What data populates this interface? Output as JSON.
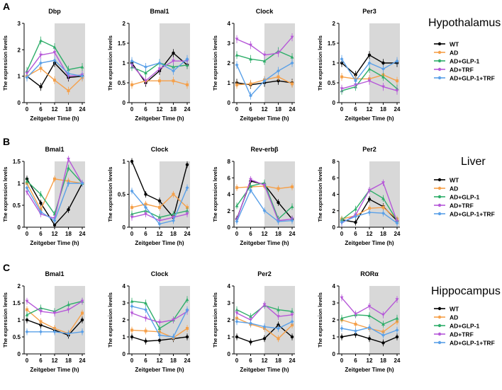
{
  "series_names": [
    "WT",
    "AD",
    "AD+GLP-1",
    "AD+TRF",
    "AD+GLP-1+TRF"
  ],
  "colors": {
    "WT": "#000000",
    "AD": "#f5a04a",
    "AD+GLP-1": "#2fae6a",
    "AD+TRF": "#b658d8",
    "AD+GLP-1+TRF": "#5aa0e8",
    "night": "#d8d8d8"
  },
  "xlabel": "Zeitgeber Time (h)",
  "ylabel": "The expression levels",
  "x_ticks": [
    0,
    6,
    12,
    18,
    24
  ],
  "panels": [
    {
      "letter": "A",
      "tissue": "Hypothalamus"
    },
    {
      "letter": "B",
      "tissue": "Liver"
    },
    {
      "letter": "C",
      "tissue": "Hippocampus"
    }
  ],
  "chart_data": [
    {
      "type": "line",
      "row": 0,
      "col": 0,
      "title": "Dbp",
      "x": [
        0,
        6,
        12,
        18,
        24
      ],
      "ylim": [
        0,
        3
      ],
      "yticks": [
        0,
        1,
        2,
        3
      ],
      "series": [
        {
          "name": "WT",
          "values": [
            1.0,
            0.6,
            1.5,
            0.95,
            1.0
          ]
        },
        {
          "name": "AD",
          "values": [
            1.0,
            1.3,
            0.85,
            0.45,
            0.95
          ]
        },
        {
          "name": "AD+GLP-1",
          "values": [
            1.2,
            2.35,
            2.1,
            1.25,
            1.35
          ]
        },
        {
          "name": "AD+TRF",
          "values": [
            1.1,
            1.8,
            1.9,
            1.0,
            1.05
          ]
        },
        {
          "name": "AD+GLP-1+TRF",
          "values": [
            0.95,
            1.5,
            1.6,
            1.1,
            1.0
          ]
        }
      ]
    },
    {
      "type": "line",
      "row": 0,
      "col": 1,
      "title": "Bmal1",
      "x": [
        0,
        6,
        12,
        18,
        24
      ],
      "ylim": [
        0,
        2.0
      ],
      "yticks": [
        0,
        0.5,
        1.0,
        1.5,
        2.0
      ],
      "series": [
        {
          "name": "WT",
          "values": [
            1.0,
            0.5,
            0.8,
            1.25,
            0.95
          ]
        },
        {
          "name": "AD",
          "values": [
            0.45,
            0.55,
            0.55,
            0.55,
            0.45
          ]
        },
        {
          "name": "AD+GLP-1",
          "values": [
            0.9,
            0.75,
            1.0,
            0.9,
            0.95
          ]
        },
        {
          "name": "AD+TRF",
          "values": [
            0.95,
            0.55,
            0.85,
            1.05,
            1.05
          ]
        },
        {
          "name": "AD+GLP-1+TRF",
          "values": [
            1.05,
            0.9,
            1.0,
            0.8,
            1.1
          ]
        }
      ]
    },
    {
      "type": "line",
      "row": 0,
      "col": 2,
      "title": "Clock",
      "x": [
        0,
        6,
        12,
        18,
        24
      ],
      "ylim": [
        0,
        4
      ],
      "yticks": [
        0,
        1,
        2,
        3,
        4
      ],
      "series": [
        {
          "name": "WT",
          "values": [
            1.0,
            0.9,
            1.0,
            1.1,
            1.0
          ]
        },
        {
          "name": "AD",
          "values": [
            0.9,
            0.95,
            1.15,
            1.3,
            0.95
          ]
        },
        {
          "name": "AD+GLP-1",
          "values": [
            2.4,
            2.2,
            2.1,
            2.6,
            2.3
          ]
        },
        {
          "name": "AD+TRF",
          "values": [
            3.2,
            2.9,
            2.4,
            2.5,
            3.3
          ]
        },
        {
          "name": "AD+GLP-1+TRF",
          "values": [
            1.9,
            0.35,
            1.1,
            1.6,
            2.0
          ]
        }
      ]
    },
    {
      "type": "line",
      "row": 0,
      "col": 3,
      "title": "Per3",
      "x": [
        0,
        6,
        12,
        18,
        24
      ],
      "ylim": [
        0,
        2.0
      ],
      "yticks": [
        0,
        0.5,
        1.0,
        1.5,
        2.0
      ],
      "series": [
        {
          "name": "WT",
          "values": [
            1.0,
            0.7,
            1.2,
            1.0,
            1.0
          ]
        },
        {
          "name": "AD",
          "values": [
            0.65,
            0.6,
            0.6,
            0.7,
            0.55
          ]
        },
        {
          "name": "AD+GLP-1",
          "values": [
            0.3,
            0.4,
            0.85,
            0.65,
            0.35
          ]
        },
        {
          "name": "AD+TRF",
          "values": [
            0.35,
            0.45,
            0.55,
            0.4,
            0.3
          ]
        },
        {
          "name": "AD+GLP-1+TRF",
          "values": [
            1.1,
            0.55,
            1.0,
            0.85,
            1.05
          ]
        }
      ]
    },
    {
      "type": "line",
      "row": 1,
      "col": 0,
      "title": "Bmal1",
      "x": [
        0,
        6,
        12,
        18,
        24
      ],
      "ylim": [
        0,
        1.5
      ],
      "yticks": [
        0,
        0.5,
        1.0,
        1.5
      ],
      "series": [
        {
          "name": "WT",
          "values": [
            1.1,
            0.55,
            0.05,
            0.4,
            1.0
          ]
        },
        {
          "name": "AD",
          "values": [
            1.0,
            0.4,
            1.1,
            1.05,
            1.0
          ]
        },
        {
          "name": "AD+GLP-1",
          "values": [
            1.05,
            0.75,
            0.3,
            1.35,
            1.0
          ]
        },
        {
          "name": "AD+TRF",
          "values": [
            0.8,
            0.3,
            0.2,
            1.55,
            1.0
          ]
        },
        {
          "name": "AD+GLP-1+TRF",
          "values": [
            0.9,
            0.35,
            0.15,
            1.0,
            1.0
          ]
        }
      ]
    },
    {
      "type": "line",
      "row": 1,
      "col": 1,
      "title": "Clock",
      "x": [
        0,
        6,
        12,
        18,
        24
      ],
      "ylim": [
        0,
        1.0
      ],
      "yticks": [
        0,
        0.5,
        1.0
      ],
      "series": [
        {
          "name": "WT",
          "values": [
            1.0,
            0.5,
            0.4,
            0.15,
            0.95
          ]
        },
        {
          "name": "AD",
          "values": [
            0.3,
            0.35,
            0.3,
            0.5,
            0.3
          ]
        },
        {
          "name": "AD+GLP-1",
          "values": [
            0.2,
            0.25,
            0.15,
            0.2,
            0.25
          ]
        },
        {
          "name": "AD+TRF",
          "values": [
            0.15,
            0.2,
            0.1,
            0.15,
            0.2
          ]
        },
        {
          "name": "AD+GLP-1+TRF",
          "values": [
            0.55,
            0.3,
            0.05,
            0.1,
            0.6
          ]
        }
      ]
    },
    {
      "type": "line",
      "row": 1,
      "col": 2,
      "title": "Rev-erbβ",
      "x": [
        0,
        6,
        12,
        18,
        24
      ],
      "ylim": [
        0,
        8
      ],
      "yticks": [
        0,
        2,
        4,
        6,
        8
      ],
      "series": [
        {
          "name": "WT",
          "values": [
            1.0,
            5.6,
            5.2,
            3.0,
            1.0
          ]
        },
        {
          "name": "AD",
          "values": [
            4.8,
            4.9,
            5.0,
            4.7,
            4.9
          ]
        },
        {
          "name": "AD+GLP-1",
          "values": [
            2.6,
            5.0,
            5.4,
            1.0,
            2.5
          ]
        },
        {
          "name": "AD+TRF",
          "values": [
            0.9,
            5.8,
            5.1,
            0.8,
            1.0
          ]
        },
        {
          "name": "AD+GLP-1+TRF",
          "values": [
            0.7,
            4.5,
            2.0,
            0.7,
            0.8
          ]
        }
      ]
    },
    {
      "type": "line",
      "row": 1,
      "col": 3,
      "title": "Per2",
      "x": [
        0,
        6,
        12,
        18,
        24
      ],
      "ylim": [
        0,
        8
      ],
      "yticks": [
        0,
        2,
        4,
        6,
        8
      ],
      "series": [
        {
          "name": "WT",
          "values": [
            0.9,
            0.6,
            3.4,
            2.5,
            0.8
          ]
        },
        {
          "name": "AD",
          "values": [
            1.0,
            1.4,
            2.3,
            2.4,
            1.0
          ]
        },
        {
          "name": "AD+GLP-1",
          "values": [
            0.9,
            2.2,
            4.5,
            3.5,
            0.8
          ]
        },
        {
          "name": "AD+TRF",
          "values": [
            0.5,
            1.5,
            4.5,
            5.4,
            0.7
          ]
        },
        {
          "name": "AD+GLP-1+TRF",
          "values": [
            0.6,
            1.3,
            1.8,
            1.7,
            0.5
          ]
        }
      ]
    },
    {
      "type": "line",
      "row": 2,
      "col": 0,
      "title": "Bmal1",
      "x": [
        0,
        6,
        12,
        18,
        24
      ],
      "ylim": [
        0,
        2.0
      ],
      "yticks": [
        0,
        0.5,
        1.0,
        1.5,
        2.0
      ],
      "series": [
        {
          "name": "WT",
          "values": [
            1.0,
            0.85,
            0.7,
            0.55,
            1.0
          ]
        },
        {
          "name": "AD",
          "values": [
            1.3,
            0.95,
            0.75,
            0.6,
            1.2
          ]
        },
        {
          "name": "AD+GLP-1",
          "values": [
            1.15,
            1.35,
            1.25,
            1.45,
            1.55
          ]
        },
        {
          "name": "AD+TRF",
          "values": [
            1.55,
            1.25,
            1.2,
            1.3,
            1.55
          ]
        },
        {
          "name": "AD+GLP-1+TRF",
          "values": [
            0.65,
            0.65,
            0.65,
            0.6,
            0.65
          ]
        }
      ]
    },
    {
      "type": "line",
      "row": 2,
      "col": 1,
      "title": "Clock",
      "x": [
        0,
        6,
        12,
        18,
        24
      ],
      "ylim": [
        0,
        4
      ],
      "yticks": [
        0,
        1,
        2,
        3,
        4
      ],
      "series": [
        {
          "name": "WT",
          "values": [
            1.0,
            0.75,
            0.8,
            0.9,
            1.0
          ]
        },
        {
          "name": "AD",
          "values": [
            1.4,
            1.35,
            1.3,
            0.95,
            1.5
          ]
        },
        {
          "name": "AD+GLP-1",
          "values": [
            3.1,
            3.0,
            1.5,
            2.0,
            3.2
          ]
        },
        {
          "name": "AD+TRF",
          "values": [
            2.4,
            2.1,
            1.85,
            2.0,
            2.5
          ]
        },
        {
          "name": "AD+GLP-1+TRF",
          "values": [
            2.8,
            2.6,
            1.1,
            1.0,
            2.6
          ]
        }
      ]
    },
    {
      "type": "line",
      "row": 2,
      "col": 2,
      "title": "Per2",
      "x": [
        0,
        6,
        12,
        18,
        24
      ],
      "ylim": [
        0,
        4
      ],
      "yticks": [
        0,
        1,
        2,
        3,
        4
      ],
      "series": [
        {
          "name": "WT",
          "values": [
            1.0,
            0.7,
            0.9,
            1.7,
            1.0
          ]
        },
        {
          "name": "AD",
          "values": [
            2.1,
            1.75,
            1.5,
            0.9,
            1.7
          ]
        },
        {
          "name": "AD+GLP-1",
          "values": [
            2.6,
            2.2,
            2.85,
            2.6,
            2.5
          ]
        },
        {
          "name": "AD+TRF",
          "values": [
            2.4,
            2.0,
            2.9,
            2.2,
            2.3
          ]
        },
        {
          "name": "AD+GLP-1+TRF",
          "values": [
            1.9,
            1.8,
            1.6,
            1.5,
            1.9
          ]
        }
      ]
    },
    {
      "type": "line",
      "row": 2,
      "col": 3,
      "title": "RORα",
      "x": [
        0,
        6,
        12,
        18,
        24
      ],
      "ylim": [
        0,
        4
      ],
      "yticks": [
        0,
        1,
        2,
        3,
        4
      ],
      "series": [
        {
          "name": "WT",
          "values": [
            1.0,
            1.15,
            0.9,
            0.65,
            1.0
          ]
        },
        {
          "name": "AD",
          "values": [
            2.0,
            1.75,
            1.5,
            1.3,
            1.9
          ]
        },
        {
          "name": "AD+GLP-1",
          "values": [
            2.1,
            2.3,
            2.25,
            1.75,
            2.1
          ]
        },
        {
          "name": "AD+TRF",
          "values": [
            3.3,
            2.35,
            2.8,
            2.3,
            3.2
          ]
        },
        {
          "name": "AD+GLP-1+TRF",
          "values": [
            1.5,
            1.35,
            1.55,
            1.1,
            1.4
          ]
        }
      ]
    }
  ]
}
